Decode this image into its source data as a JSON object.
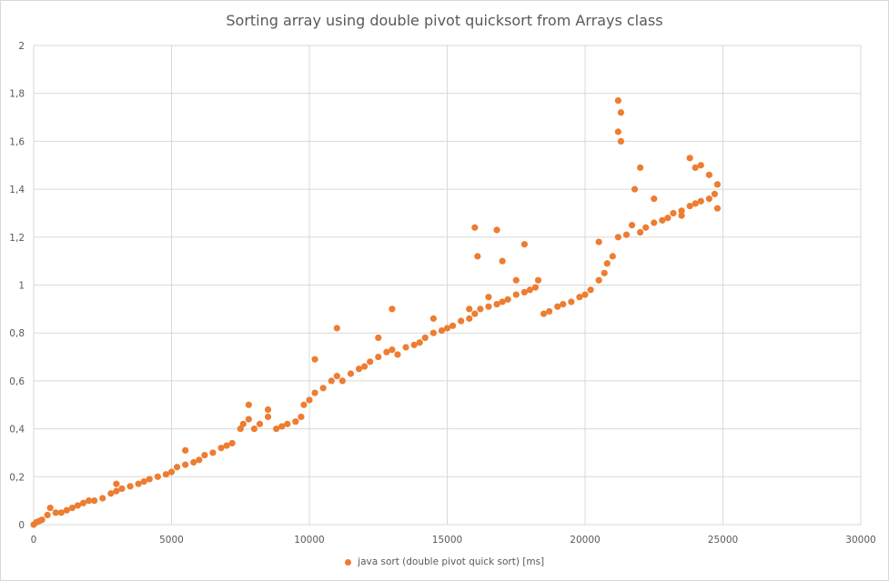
{
  "chart_data": {
    "type": "scatter",
    "title": "Sorting array using double pivot quicksort from Arrays class",
    "xlim": [
      0,
      30000
    ],
    "ylim": [
      0,
      2
    ],
    "x_ticks": [
      "0",
      "5000",
      "10000",
      "15000",
      "20000",
      "25000",
      "30000"
    ],
    "y_ticks": [
      "0",
      "0,2",
      "0,4",
      "0,6",
      "0,8",
      "1",
      "1,2",
      "1,4",
      "1,6",
      "1,8",
      "2"
    ],
    "grid": true,
    "legend_position": "bottom",
    "color": "#ED7D31",
    "series": [
      {
        "name": "java sort (double pivot quick sort) [ms]",
        "points": [
          [
            0,
            0.0
          ],
          [
            100,
            0.01
          ],
          [
            200,
            0.015
          ],
          [
            300,
            0.02
          ],
          [
            500,
            0.04
          ],
          [
            600,
            0.07
          ],
          [
            800,
            0.05
          ],
          [
            1000,
            0.05
          ],
          [
            1200,
            0.06
          ],
          [
            1400,
            0.07
          ],
          [
            1600,
            0.08
          ],
          [
            1800,
            0.09
          ],
          [
            2000,
            0.1
          ],
          [
            2200,
            0.1
          ],
          [
            2500,
            0.11
          ],
          [
            2800,
            0.13
          ],
          [
            3000,
            0.14
          ],
          [
            3000,
            0.17
          ],
          [
            3200,
            0.15
          ],
          [
            3500,
            0.16
          ],
          [
            3800,
            0.17
          ],
          [
            4000,
            0.18
          ],
          [
            4200,
            0.19
          ],
          [
            4500,
            0.2
          ],
          [
            4800,
            0.21
          ],
          [
            5000,
            0.22
          ],
          [
            5200,
            0.24
          ],
          [
            5500,
            0.25
          ],
          [
            5500,
            0.31
          ],
          [
            5800,
            0.26
          ],
          [
            6000,
            0.27
          ],
          [
            6200,
            0.29
          ],
          [
            6500,
            0.3
          ],
          [
            6800,
            0.32
          ],
          [
            7000,
            0.33
          ],
          [
            7200,
            0.34
          ],
          [
            7500,
            0.4
          ],
          [
            7600,
            0.42
          ],
          [
            7800,
            0.44
          ],
          [
            7800,
            0.5
          ],
          [
            8000,
            0.4
          ],
          [
            8200,
            0.42
          ],
          [
            8500,
            0.45
          ],
          [
            8500,
            0.48
          ],
          [
            8800,
            0.4
          ],
          [
            9000,
            0.41
          ],
          [
            9200,
            0.42
          ],
          [
            9500,
            0.43
          ],
          [
            9700,
            0.45
          ],
          [
            9800,
            0.5
          ],
          [
            10000,
            0.52
          ],
          [
            10200,
            0.55
          ],
          [
            10200,
            0.69
          ],
          [
            10500,
            0.57
          ],
          [
            10800,
            0.6
          ],
          [
            11000,
            0.62
          ],
          [
            11000,
            0.82
          ],
          [
            11200,
            0.6
          ],
          [
            11500,
            0.63
          ],
          [
            11800,
            0.65
          ],
          [
            12000,
            0.66
          ],
          [
            12200,
            0.68
          ],
          [
            12500,
            0.7
          ],
          [
            12500,
            0.78
          ],
          [
            12800,
            0.72
          ],
          [
            13000,
            0.73
          ],
          [
            13000,
            0.9
          ],
          [
            13200,
            0.71
          ],
          [
            13500,
            0.74
          ],
          [
            13800,
            0.75
          ],
          [
            14000,
            0.76
          ],
          [
            14200,
            0.78
          ],
          [
            14500,
            0.8
          ],
          [
            14500,
            0.86
          ],
          [
            14800,
            0.81
          ],
          [
            15000,
            0.82
          ],
          [
            15200,
            0.83
          ],
          [
            15500,
            0.85
          ],
          [
            15800,
            0.86
          ],
          [
            15800,
            0.9
          ],
          [
            16000,
            0.88
          ],
          [
            16000,
            1.24
          ],
          [
            16100,
            1.12
          ],
          [
            16200,
            0.9
          ],
          [
            16500,
            0.91
          ],
          [
            16500,
            0.95
          ],
          [
            16800,
            0.92
          ],
          [
            16800,
            1.23
          ],
          [
            17000,
            0.93
          ],
          [
            17000,
            1.1
          ],
          [
            17200,
            0.94
          ],
          [
            17500,
            0.96
          ],
          [
            17500,
            1.02
          ],
          [
            17800,
            0.97
          ],
          [
            17800,
            1.17
          ],
          [
            18000,
            0.98
          ],
          [
            18200,
            0.99
          ],
          [
            18300,
            1.02
          ],
          [
            18500,
            0.88
          ],
          [
            18700,
            0.89
          ],
          [
            19000,
            0.91
          ],
          [
            19200,
            0.92
          ],
          [
            19500,
            0.93
          ],
          [
            19800,
            0.95
          ],
          [
            20000,
            0.96
          ],
          [
            20200,
            0.98
          ],
          [
            20500,
            1.02
          ],
          [
            20500,
            1.18
          ],
          [
            20700,
            1.05
          ],
          [
            20800,
            1.09
          ],
          [
            21000,
            1.12
          ],
          [
            21200,
            1.2
          ],
          [
            21200,
            1.64
          ],
          [
            21200,
            1.77
          ],
          [
            21300,
            1.72
          ],
          [
            21300,
            1.6
          ],
          [
            21500,
            1.21
          ],
          [
            21700,
            1.25
          ],
          [
            21800,
            1.4
          ],
          [
            22000,
            1.22
          ],
          [
            22000,
            1.49
          ],
          [
            22200,
            1.24
          ],
          [
            22500,
            1.26
          ],
          [
            22500,
            1.36
          ],
          [
            22800,
            1.27
          ],
          [
            23000,
            1.28
          ],
          [
            23200,
            1.3
          ],
          [
            23500,
            1.31
          ],
          [
            23500,
            1.29
          ],
          [
            23800,
            1.33
          ],
          [
            23800,
            1.53
          ],
          [
            24000,
            1.34
          ],
          [
            24000,
            1.49
          ],
          [
            24200,
            1.35
          ],
          [
            24200,
            1.5
          ],
          [
            24500,
            1.36
          ],
          [
            24500,
            1.46
          ],
          [
            24700,
            1.38
          ],
          [
            24800,
            1.42
          ],
          [
            24800,
            1.32
          ]
        ]
      }
    ]
  }
}
